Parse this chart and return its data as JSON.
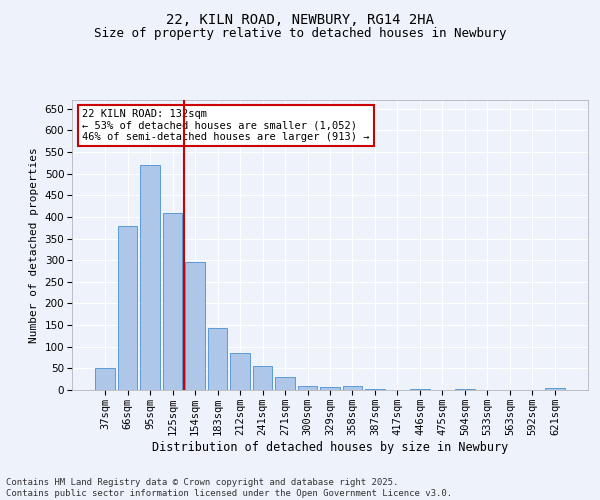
{
  "title": "22, KILN ROAD, NEWBURY, RG14 2HA",
  "subtitle": "Size of property relative to detached houses in Newbury",
  "xlabel": "Distribution of detached houses by size in Newbury",
  "ylabel": "Number of detached properties",
  "categories": [
    "37sqm",
    "66sqm",
    "95sqm",
    "125sqm",
    "154sqm",
    "183sqm",
    "212sqm",
    "241sqm",
    "271sqm",
    "300sqm",
    "329sqm",
    "358sqm",
    "387sqm",
    "417sqm",
    "446sqm",
    "475sqm",
    "504sqm",
    "533sqm",
    "563sqm",
    "592sqm",
    "621sqm"
  ],
  "values": [
    50,
    380,
    520,
    408,
    295,
    143,
    85,
    55,
    30,
    10,
    7,
    10,
    2,
    0,
    2,
    0,
    2,
    0,
    0,
    0,
    5
  ],
  "bar_color": "#aec6e8",
  "bar_edge_color": "#5b9bd5",
  "background_color": "#eef2fb",
  "grid_color": "#ffffff",
  "vline_x": 3.5,
  "vline_color": "#cc0000",
  "annotation_text": "22 KILN ROAD: 132sqm\n← 53% of detached houses are smaller (1,052)\n46% of semi-detached houses are larger (913) →",
  "annotation_box_color": "#ffffff",
  "annotation_box_edge_color": "#cc0000",
  "ylim": [
    0,
    670
  ],
  "yticks": [
    0,
    50,
    100,
    150,
    200,
    250,
    300,
    350,
    400,
    450,
    500,
    550,
    600,
    650
  ],
  "footer": "Contains HM Land Registry data © Crown copyright and database right 2025.\nContains public sector information licensed under the Open Government Licence v3.0.",
  "title_fontsize": 10,
  "subtitle_fontsize": 9,
  "xlabel_fontsize": 8.5,
  "ylabel_fontsize": 8,
  "tick_fontsize": 7.5,
  "annotation_fontsize": 7.5,
  "footer_fontsize": 6.5
}
